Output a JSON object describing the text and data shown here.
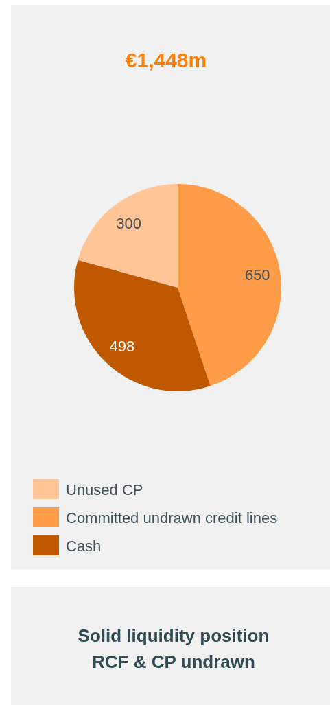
{
  "chart_data": {
    "type": "pie",
    "title": "€1,448m",
    "categories": [
      "Unused CP",
      "Committed undrawn credit lines",
      "Cash"
    ],
    "values": [
      300,
      650,
      498
    ],
    "colors": [
      "#ffc596",
      "#ff9c48",
      "#c05800"
    ],
    "data_labels": true,
    "legend": "bottom",
    "annotations": [
      "Solid liquidity position\nRCF & CP undrawn"
    ]
  }
}
